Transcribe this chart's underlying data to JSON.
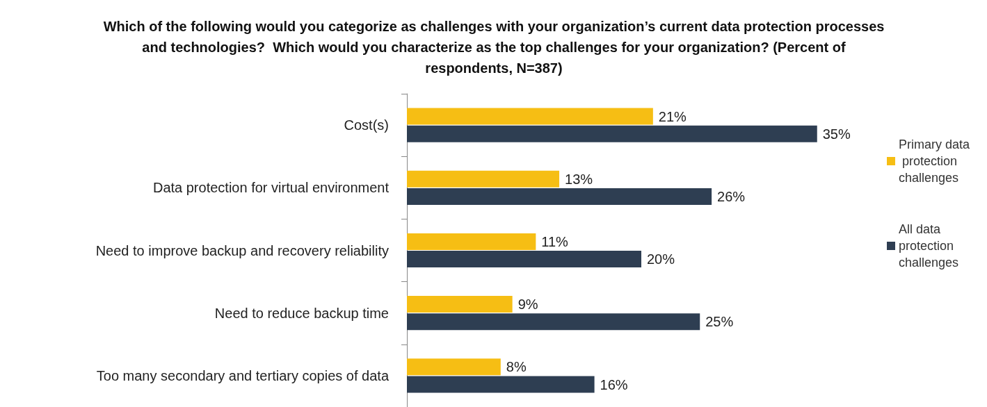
{
  "chart_data": {
    "type": "bar",
    "orientation": "horizontal",
    "title": "Which of the following would you categorize as challenges with your organization’s current data protection processes and technologies?  Which would you characterize as the top challenges for your organization? (Percent of respondents, N=387)",
    "categories": [
      "Cost(s)",
      "Data protection for virtual environment",
      "Need to improve backup and recovery reliability",
      "Need to reduce backup time",
      "Too many secondary and tertiary copies of data"
    ],
    "series": [
      {
        "name": "Primary data protection challenges",
        "color": "#f6be14",
        "values": [
          21,
          13,
          11,
          9,
          8
        ],
        "value_labels": [
          "21%",
          "13%",
          "11%",
          "9%",
          "8%"
        ]
      },
      {
        "name": "All data protection challenges",
        "color": "#2e3e52",
        "values": [
          35,
          26,
          20,
          25,
          16
        ],
        "value_labels": [
          "35%",
          "26%",
          "20%",
          "25%",
          "16%"
        ]
      }
    ],
    "legend": "right",
    "grid": false
  }
}
